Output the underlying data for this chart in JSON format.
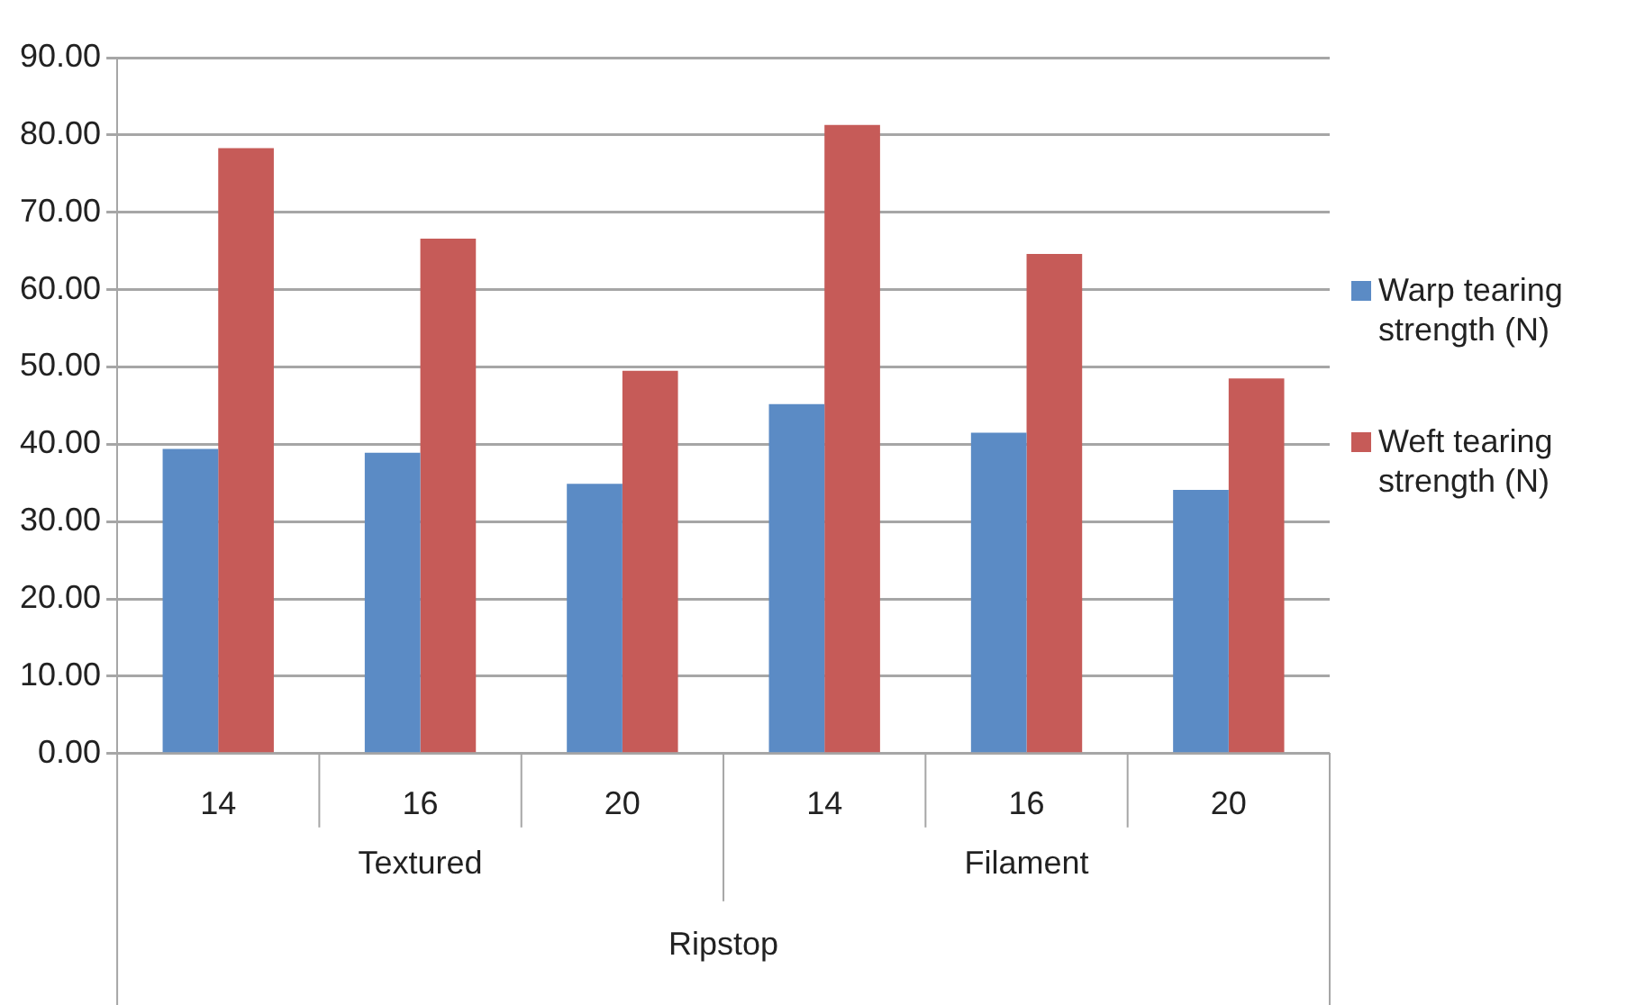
{
  "chart_data": {
    "type": "bar",
    "categories": [
      "14",
      "16",
      "20",
      "14",
      "16",
      "20"
    ],
    "series": [
      {
        "name": "Warp tearing strength (N)",
        "color": "#5b8bc5",
        "values": [
          39.4,
          38.9,
          34.9,
          45.2,
          41.5,
          34.1
        ]
      },
      {
        "name": "Weft tearing strength (N)",
        "color": "#c65b58",
        "values": [
          78.3,
          66.6,
          49.5,
          81.3,
          64.6,
          48.5
        ]
      }
    ],
    "ylim": [
      0,
      90
    ],
    "yticks": [
      {
        "value": 0,
        "label": "0.00"
      },
      {
        "value": 10,
        "label": "10.00"
      },
      {
        "value": 20,
        "label": "20.00"
      },
      {
        "value": 30,
        "label": "30.00"
      },
      {
        "value": 40,
        "label": "40.00"
      },
      {
        "value": 50,
        "label": "50.00"
      },
      {
        "value": 60,
        "label": "60.00"
      },
      {
        "value": 70,
        "label": "70.00"
      },
      {
        "value": 80,
        "label": "80.00"
      },
      {
        "value": 90,
        "label": "90.00"
      }
    ],
    "grid": "y",
    "legend": "right",
    "annotations": [
      "Textured",
      "Filament",
      "Ripstop"
    ]
  }
}
